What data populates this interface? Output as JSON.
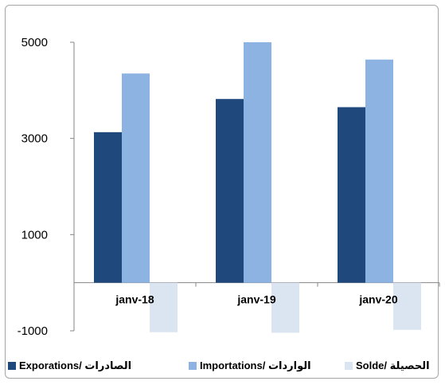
{
  "chart_data": {
    "type": "bar",
    "categories": [
      "janv-18",
      "janv-19",
      "janv-20"
    ],
    "series": [
      {
        "name": "Exporations/ الصادرات",
        "color": "#1f497d",
        "values": [
          3130,
          3820,
          3650
        ]
      },
      {
        "name": "Importations/ الواردات",
        "color": "#8db3e2",
        "values": [
          4350,
          5020,
          4640
        ]
      },
      {
        "name": "Solde/ الحصيلة",
        "color": "#dbe5f1",
        "values": [
          -1030,
          -1040,
          -980
        ]
      }
    ],
    "yticks": [
      "5000",
      "3000",
      "1000",
      "-1000"
    ],
    "ylim": [
      -1000,
      5000
    ],
    "grid": false,
    "legend_position": "bottom"
  }
}
